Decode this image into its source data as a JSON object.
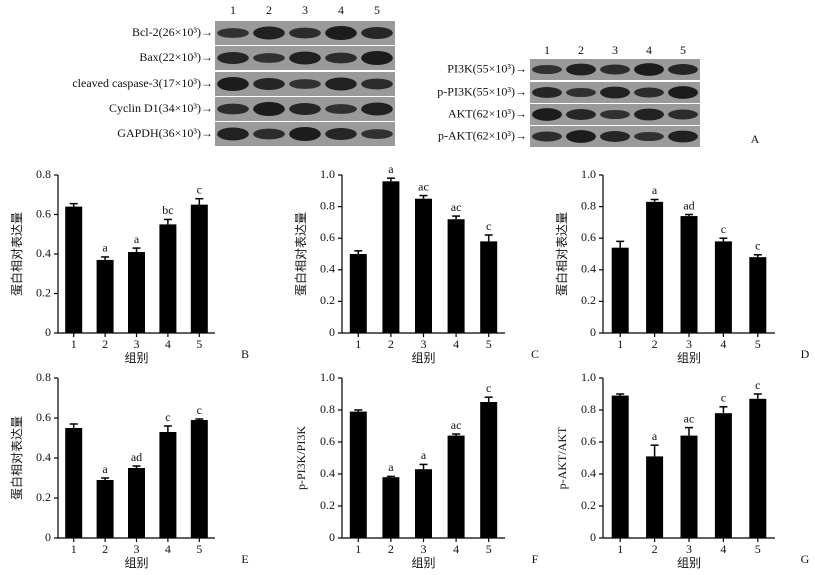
{
  "blots": {
    "left": {
      "lanes": [
        "1",
        "2",
        "3",
        "4",
        "5"
      ],
      "rows": [
        "Bcl-2(26×10³)→",
        "Bax(22×10³)→",
        "cleaved caspase-3(17×10³)→",
        "Cyclin D1(34×10³)→",
        "GAPDH(36×10³)→"
      ]
    },
    "right": {
      "lanes": [
        "1",
        "2",
        "3",
        "4",
        "5"
      ],
      "rows": [
        "PI3K(55×10³)→",
        "p-PI3K(55×10³)→",
        "AKT(62×10³)→",
        "p-AKT(62×10³)→"
      ]
    },
    "panel": "A"
  },
  "chart_data": [
    {
      "type": "bar",
      "panel": "B",
      "ylabel": "蛋白相对表达量",
      "xlabel": "组别",
      "color": "#000000",
      "categories": [
        "1",
        "2",
        "3",
        "4",
        "5"
      ],
      "values": [
        0.64,
        0.37,
        0.41,
        0.55,
        0.65
      ],
      "errors": [
        0.015,
        0.015,
        0.02,
        0.025,
        0.03
      ],
      "annotations": [
        null,
        "a",
        "a",
        "bc",
        "c"
      ],
      "ylim": [
        0,
        0.8
      ],
      "yticks": [
        0,
        0.2,
        0.4,
        0.6,
        0.8
      ]
    },
    {
      "type": "bar",
      "panel": "C",
      "ylabel": "蛋白相对表达量",
      "xlabel": "组别",
      "color": "#000000",
      "categories": [
        "1",
        "2",
        "3",
        "4",
        "5"
      ],
      "values": [
        0.5,
        0.96,
        0.85,
        0.72,
        0.58
      ],
      "errors": [
        0.02,
        0.02,
        0.02,
        0.02,
        0.04
      ],
      "annotations": [
        null,
        "a",
        "ac",
        "ac",
        "c"
      ],
      "ylim": [
        0,
        1
      ],
      "yticks": [
        0,
        0.2,
        0.4,
        0.6,
        0.8,
        {
          "value": 1,
          "label": "1.0"
        }
      ]
    },
    {
      "type": "bar",
      "panel": "D",
      "ylabel": "蛋白相对表达量",
      "xlabel": "组别",
      "color": "#000000",
      "categories": [
        "1",
        "2",
        "3",
        "4",
        "5"
      ],
      "values": [
        0.54,
        0.83,
        0.74,
        0.58,
        0.48
      ],
      "errors": [
        0.04,
        0.015,
        0.01,
        0.02,
        0.015
      ],
      "annotations": [
        null,
        "a",
        "ad",
        "c",
        "c"
      ],
      "ylim": [
        0,
        1
      ],
      "yticks": [
        0,
        0.2,
        0.4,
        0.6,
        0.8,
        {
          "value": 1,
          "label": "1.0"
        }
      ]
    },
    {
      "type": "bar",
      "panel": "E",
      "ylabel": "蛋白相对表达量",
      "xlabel": "组别",
      "color": "#000000",
      "categories": [
        "1",
        "2",
        "3",
        "4",
        "5"
      ],
      "values": [
        0.55,
        0.29,
        0.35,
        0.53,
        0.59
      ],
      "errors": [
        0.02,
        0.01,
        0.01,
        0.03,
        0.005
      ],
      "annotations": [
        null,
        "a",
        "ad",
        "c",
        "c"
      ],
      "ylim": [
        0,
        0.8
      ],
      "yticks": [
        0,
        0.2,
        0.4,
        0.6,
        0.8
      ]
    },
    {
      "type": "bar",
      "panel": "F",
      "ylabel": "p-PI3K/PI3K",
      "xlabel": "组别",
      "color": "#000000",
      "categories": [
        "1",
        "2",
        "3",
        "4",
        "5"
      ],
      "values": [
        0.79,
        0.38,
        0.43,
        0.64,
        0.85
      ],
      "errors": [
        0.01,
        0.005,
        0.03,
        0.01,
        0.03
      ],
      "annotations": [
        null,
        "a",
        "a",
        "ac",
        "c"
      ],
      "ylim": [
        0,
        1
      ],
      "yticks": [
        0,
        0.2,
        0.4,
        0.6,
        0.8,
        {
          "value": 1,
          "label": "1.0"
        }
      ]
    },
    {
      "type": "bar",
      "panel": "G",
      "ylabel": "p-AKT/AKT",
      "xlabel": "组别",
      "color": "#000000",
      "categories": [
        "1",
        "2",
        "3",
        "4",
        "5"
      ],
      "values": [
        0.89,
        0.51,
        0.64,
        0.78,
        0.87
      ],
      "errors": [
        0.01,
        0.07,
        0.05,
        0.04,
        0.03
      ],
      "annotations": [
        null,
        "a",
        "ac",
        "c",
        "c"
      ],
      "ylim": [
        0,
        1
      ],
      "yticks": [
        0,
        0.2,
        0.4,
        0.6,
        0.8,
        {
          "value": 1,
          "label": "1.0"
        }
      ]
    }
  ]
}
